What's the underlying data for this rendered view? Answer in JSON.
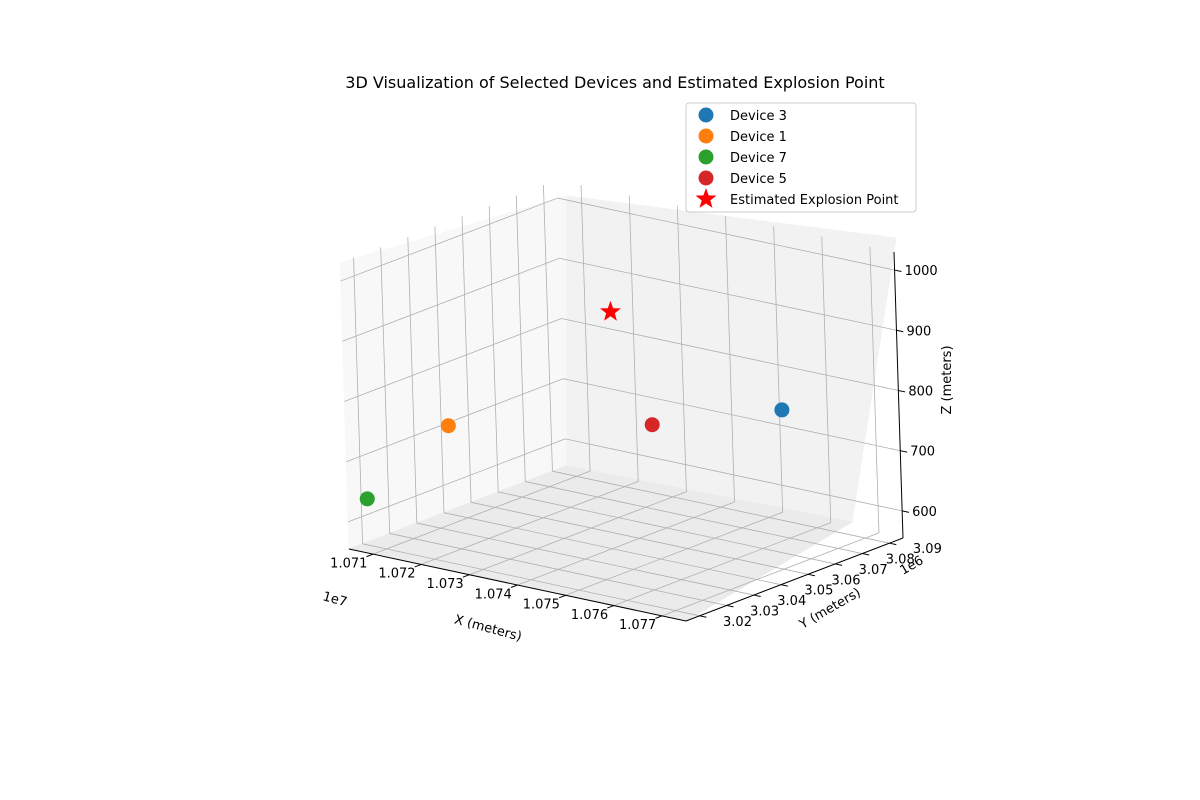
{
  "chart_data": {
    "type": "scatter3d",
    "title": "3D Visualization of Selected Devices and Estimated Explosion Point",
    "xlabel": "X (meters)",
    "ylabel": "Y (meters)",
    "zlabel": "Z (meters)",
    "x_offset_text": "1e7",
    "y_offset_text": "1e6",
    "x_ticks": [
      10710000,
      10720000,
      10730000,
      10740000,
      10750000,
      10760000,
      10770000
    ],
    "x_tick_labels": [
      "1.071",
      "1.072",
      "1.073",
      "1.074",
      "1.075",
      "1.076",
      "1.077"
    ],
    "y_ticks": [
      3020000,
      3030000,
      3040000,
      3050000,
      3060000,
      3070000,
      3080000,
      3090000
    ],
    "y_tick_labels": [
      "3.02",
      "3.03",
      "3.04",
      "3.05",
      "3.06",
      "3.07",
      "3.08",
      "3.09"
    ],
    "z_ticks": [
      600,
      700,
      800,
      900,
      1000
    ],
    "z_tick_labels": [
      "600",
      "700",
      "800",
      "900",
      "1000"
    ],
    "xlim": [
      10705000,
      10775000
    ],
    "ylim": [
      3015000,
      3095000
    ],
    "zlim": [
      555,
      1030
    ],
    "grid": true,
    "legend_position": "upper-right",
    "series": [
      {
        "name": "Device 3",
        "marker": "circle",
        "color": "#1f77b4",
        "x": 10762000,
        "y": 3075000,
        "z": 780
      },
      {
        "name": "Device 1",
        "marker": "circle",
        "color": "#ff7f0e",
        "x": 10722000,
        "y": 3023000,
        "z": 775
      },
      {
        "name": "Device 7",
        "marker": "circle",
        "color": "#2ca02c",
        "x": 10708000,
        "y": 3017000,
        "z": 640
      },
      {
        "name": "Device 5",
        "marker": "circle",
        "color": "#d62728",
        "x": 10752000,
        "y": 3045000,
        "z": 790
      },
      {
        "name": "Estimated Explosion Point",
        "marker": "star",
        "color": "#ff0000",
        "x": 10740000,
        "y": 3052000,
        "z": 945
      }
    ]
  }
}
